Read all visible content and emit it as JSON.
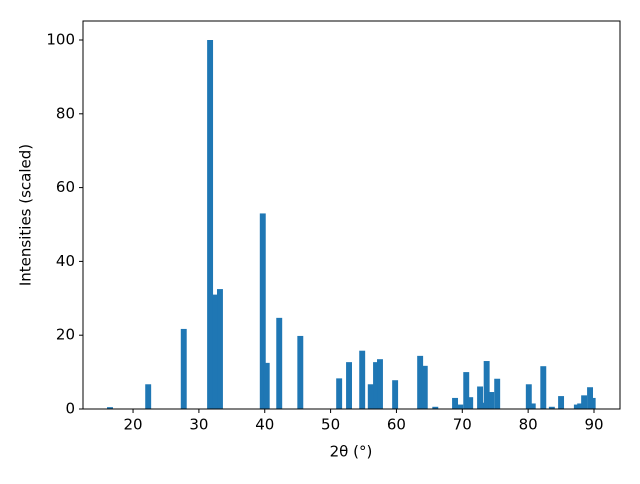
{
  "chart_data": {
    "type": "bar",
    "x_label": "2θ (°)",
    "y_label": "Intensities (scaled)",
    "x": [
      16.5,
      22.3,
      27.7,
      31.7,
      32.5,
      33.2,
      39.7,
      40.3,
      42.2,
      45.4,
      51.3,
      52.8,
      54.8,
      56.1,
      56.9,
      57.5,
      59.8,
      63.6,
      64.3,
      65.9,
      68.9,
      69.7,
      70.6,
      71.2,
      72.7,
      73.1,
      73.7,
      74.4,
      75.3,
      80.1,
      80.7,
      82.3,
      83.6,
      85.0,
      87.4,
      87.9,
      88.5,
      89.4,
      89.8
    ],
    "values": [
      0.5,
      6.7,
      21.7,
      100,
      31,
      32.5,
      53,
      12.5,
      24.7,
      19.8,
      8.3,
      12.7,
      15.8,
      6.7,
      12.7,
      13.5,
      7.8,
      14.4,
      11.7,
      0.6,
      3.0,
      1.2,
      10.0,
      3.2,
      6.1,
      1.7,
      13.0,
      4.6,
      8.2,
      6.7,
      1.5,
      11.6,
      0.6,
      3.5,
      1.2,
      1.5,
      3.7,
      5.9,
      3.0
    ],
    "color": "#1f77b4",
    "xlim": [
      12.4,
      93.95
    ],
    "xticks": [
      20,
      30,
      40,
      50,
      60,
      70,
      80,
      90
    ],
    "ylim": [
      0,
      105.15
    ],
    "yticks": [
      0,
      20,
      40,
      60,
      80,
      100
    ],
    "grid": false
  }
}
